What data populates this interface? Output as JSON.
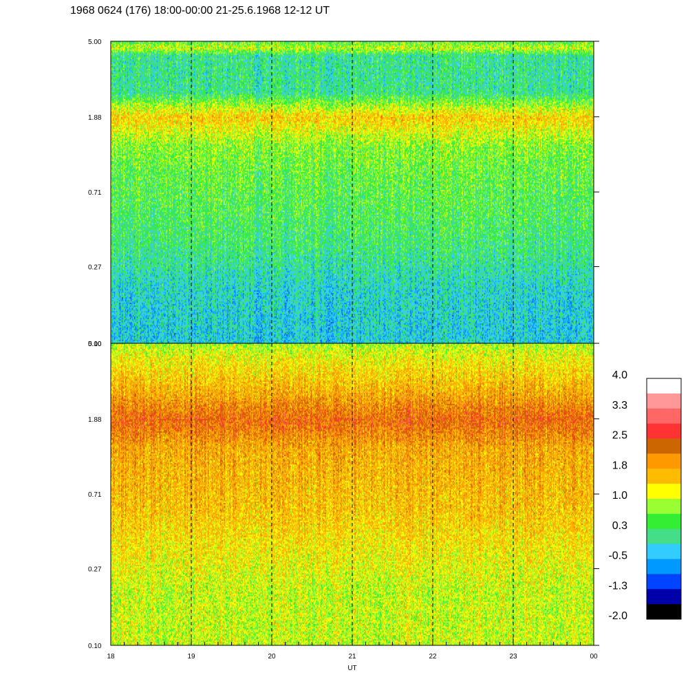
{
  "chart_data": {
    "type": "heatmap",
    "title": "1968 0624 (176) 18:00-00:00 21-25.6.1968  12-12 UT",
    "xlabel": "UT",
    "x_ticks": [
      "18",
      "19",
      "20",
      "21",
      "22",
      "23",
      "00"
    ],
    "x_range_hours": [
      18,
      24
    ],
    "y_scale": "log",
    "y_range": [
      0.1,
      5.0
    ],
    "y_ticks": [
      "0.10",
      "0.27",
      "0.71",
      "1.88",
      "5.00"
    ],
    "dashed_vertical_lines_at_hours": [
      19,
      20,
      21,
      22,
      23
    ],
    "panels": [
      {
        "name": "upper",
        "base_levels_by_frequency": [
          {
            "freq": 0.1,
            "level": -0.3
          },
          {
            "freq": 0.2,
            "level": -0.2
          },
          {
            "freq": 0.35,
            "level": 0.2
          },
          {
            "freq": 0.6,
            "level": 0.4
          },
          {
            "freq": 0.9,
            "level": 0.5
          },
          {
            "freq": 1.3,
            "level": 0.7
          },
          {
            "freq": 1.88,
            "level": 1.5
          },
          {
            "freq": 2.6,
            "level": 0.1
          },
          {
            "freq": 4.2,
            "level": 0.1
          },
          {
            "freq": 4.6,
            "level": 1.0
          },
          {
            "freq": 5.0,
            "level": 0.5
          }
        ]
      },
      {
        "name": "lower",
        "base_levels_by_frequency": [
          {
            "freq": 0.1,
            "level": 1.0
          },
          {
            "freq": 0.2,
            "level": 1.0
          },
          {
            "freq": 0.35,
            "level": 1.3
          },
          {
            "freq": 0.6,
            "level": 1.6
          },
          {
            "freq": 0.9,
            "level": 1.7
          },
          {
            "freq": 1.3,
            "level": 1.8
          },
          {
            "freq": 1.88,
            "level": 2.3
          },
          {
            "freq": 2.6,
            "level": 1.8
          },
          {
            "freq": 4.2,
            "level": 1.2
          },
          {
            "freq": 5.0,
            "level": 0.9
          }
        ]
      }
    ],
    "colorbar": {
      "labels": [
        "4.0",
        "3.3",
        "2.5",
        "1.8",
        "1.0",
        "0.3",
        "-0.5",
        "-1.3",
        "-2.0"
      ],
      "colors_top_to_bottom": [
        "#ffffff",
        "#ff9999",
        "#ff6666",
        "#ff3333",
        "#cc6600",
        "#ff9900",
        "#ffbb00",
        "#ffff00",
        "#99ff33",
        "#33ee33",
        "#44dd88",
        "#33ccff",
        "#0099ff",
        "#0044ff",
        "#0000aa",
        "#000000"
      ]
    }
  }
}
